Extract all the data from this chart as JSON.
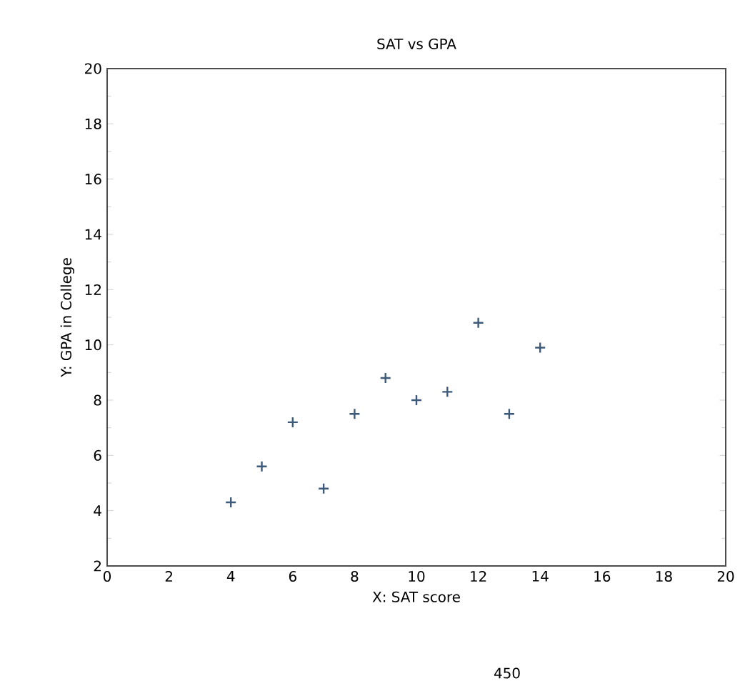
{
  "chart_data": {
    "type": "scatter",
    "title": "SAT vs GPA",
    "xlabel": "X: SAT score",
    "ylabel": "Y: GPA in College",
    "x": [
      4,
      5,
      6,
      7,
      8,
      9,
      10,
      11,
      12,
      13,
      14
    ],
    "values": [
      4.3,
      5.6,
      7.2,
      4.8,
      7.5,
      8.8,
      8.0,
      8.3,
      10.8,
      7.5,
      9.9
    ],
    "color": "#3d5a7a",
    "marker": "cross",
    "grid": false,
    "xlim": [
      0,
      20
    ],
    "xticks": [
      0,
      2,
      4,
      6,
      8,
      10,
      12,
      14,
      16,
      18,
      20
    ],
    "ylim": [
      2,
      20
    ],
    "yticks": [
      2,
      4,
      6,
      8,
      10,
      12,
      14,
      16,
      18,
      20
    ],
    "annotations": [
      "450"
    ]
  }
}
